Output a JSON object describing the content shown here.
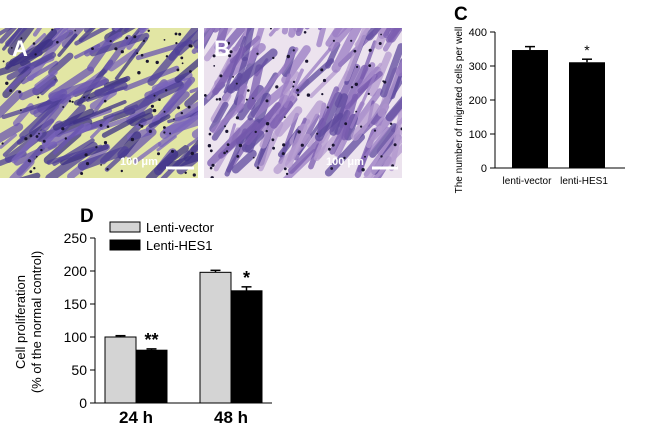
{
  "panels": {
    "a_letter": "A",
    "b_letter": "B",
    "c_letter": "C",
    "d_letter": "D",
    "scale_a": "100 μm",
    "scale_b": "100 μm"
  },
  "colors": {
    "bar_black": "#000000",
    "bar_gray": "#d4d4d4",
    "stain_purple": "#5b4aa0",
    "stain_yellow": "#e2e6a4"
  },
  "chart_data": [
    {
      "type": "bar",
      "panel": "C",
      "categories": [
        "lenti-vector",
        "lenti-HES1"
      ],
      "values": [
        347,
        311
      ],
      "errors": [
        10,
        9
      ],
      "significance": [
        "",
        "*"
      ],
      "ylabel": "The number of migrated cells per well",
      "xlabel": "",
      "ylim": [
        0,
        400
      ],
      "yticks": [
        0,
        100,
        200,
        300,
        400
      ],
      "grid": false
    },
    {
      "type": "bar",
      "panel": "D",
      "categories": [
        "24 h",
        "48 h"
      ],
      "series": [
        {
          "name": "Lenti-vector",
          "values": [
            100,
            198
          ],
          "errors": [
            2,
            3
          ],
          "color": "#d4d4d4"
        },
        {
          "name": "Lenti-HES1",
          "values": [
            80,
            170
          ],
          "errors": [
            2,
            6
          ],
          "color": "#000000"
        }
      ],
      "significance": [
        "**",
        "*"
      ],
      "ylabel_line1": "Cell proliferation",
      "ylabel_line2": "(% of the normal control)",
      "xlabel": "",
      "ylim": [
        0,
        250
      ],
      "yticks": [
        0,
        50,
        100,
        150,
        200,
        250
      ],
      "legend": "top-left",
      "grid": false
    }
  ]
}
